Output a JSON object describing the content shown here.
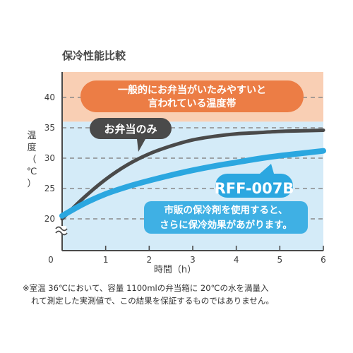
{
  "chart_data": {
    "type": "line",
    "title": "保冷性能比較",
    "xlabel": "時間（h）",
    "ylabel": "温度（℃）",
    "xlim": [
      0,
      6
    ],
    "ylim": [
      18,
      44
    ],
    "x_ticks": [
      "0",
      "1",
      "2",
      "3",
      "4",
      "5",
      "6"
    ],
    "y_ticks": [
      "20",
      "25",
      "30",
      "35",
      "40"
    ],
    "grid": "dashed horizontal",
    "ambient_temperature": 36,
    "series": [
      {
        "name": "お弁当のみ",
        "color": "#4a4a4a",
        "x": [
          0,
          0.5,
          1,
          1.5,
          2,
          2.5,
          3,
          3.5,
          4,
          4.5,
          5,
          5.5,
          6
        ],
        "values": [
          20,
          23.5,
          26.5,
          28.9,
          30.7,
          32,
          33,
          33.6,
          34,
          34.2,
          34.4,
          34.5,
          34.6
        ]
      },
      {
        "name": "RFF-007B",
        "color": "#2ba7e0",
        "x": [
          0,
          0.5,
          1,
          1.5,
          2,
          2.5,
          3,
          3.5,
          4,
          4.5,
          5,
          5.5,
          6
        ],
        "values": [
          20.5,
          22.5,
          24.1,
          25.3,
          26.3,
          27.2,
          28,
          28.7,
          29.3,
          29.9,
          30.4,
          30.8,
          31.2
        ]
      }
    ],
    "zones": [
      {
        "name": "danger",
        "from": 36,
        "to": 44,
        "color": "#f9cfb4"
      },
      {
        "name": "safe",
        "from": 18,
        "to": 36,
        "color": "#d4ebf8"
      }
    ],
    "annotations": {
      "danger_zone": [
        "一般的にお弁当がいたみやすいと",
        "言われている温度帯"
      ],
      "plain_label": "お弁当のみ",
      "product_label": "RFF-007B",
      "product_note": [
        "市販の保冷剤を使用すると、",
        "さらに保冷効果があがります。"
      ]
    }
  },
  "footnote": [
    "※室温 36℃において、容量 1100mlの弁当箱に 20℃の水を満量入",
    "れて測定した実測値で、この結果を保証するものではありません。"
  ],
  "colors": {
    "danger_zone": "#f9cfb4",
    "safe_zone": "#d4ebf8",
    "danger_callout": "#ec7d45",
    "plain_line": "#4a4a4a",
    "product_line": "#2ba7e0",
    "product_note": "#3fb0e4"
  }
}
